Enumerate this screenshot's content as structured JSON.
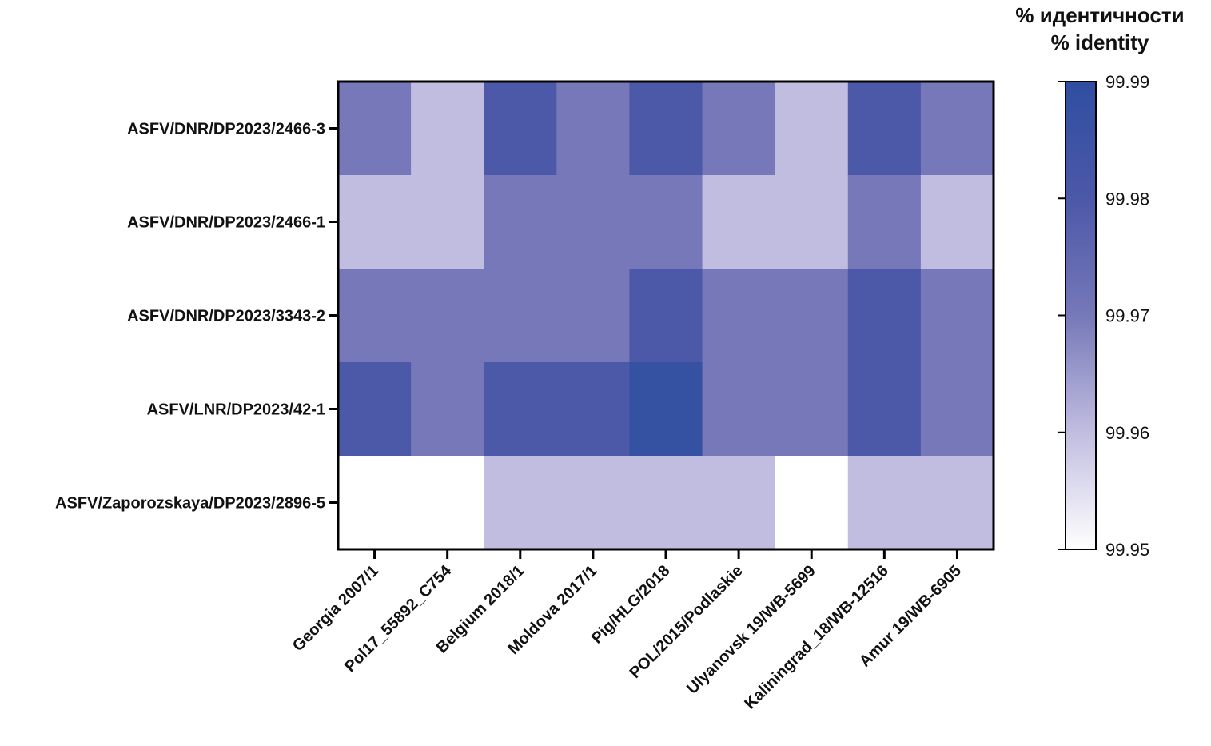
{
  "chart_data": {
    "type": "heatmap",
    "legend_title": [
      "% идентичности",
      "% identity"
    ],
    "rows": [
      "ASFV/DNR/DP2023/2466-3",
      "ASFV/DNR/DP2023/2466-1",
      "ASFV/DNR/DP2023/3343-2",
      "ASFV/LNR/DP2023/42-1",
      "ASFV/Zaporozskaya/DP2023/2896-5"
    ],
    "columns": [
      "Georgia 2007/1",
      "Pol17_55892_C754",
      "Belgium 2018/1",
      "Moldova 2017/1",
      "Pig/HLG/2018",
      "POL/2015/Podlaskie",
      "Ulyanovsk 19/WB-5699",
      "Kaliningrad_18/WB-12516",
      "Amur 19/WB-6905"
    ],
    "values": [
      [
        99.97,
        99.96,
        99.98,
        99.97,
        99.98,
        99.97,
        99.96,
        99.98,
        99.97
      ],
      [
        99.96,
        99.96,
        99.97,
        99.97,
        99.97,
        99.96,
        99.96,
        99.97,
        99.96
      ],
      [
        99.97,
        99.97,
        99.97,
        99.97,
        99.98,
        99.97,
        99.97,
        99.98,
        99.97
      ],
      [
        99.98,
        99.97,
        99.98,
        99.98,
        99.99,
        99.97,
        99.97,
        99.98,
        99.97
      ],
      [
        99.95,
        99.95,
        99.96,
        99.96,
        99.96,
        99.96,
        99.95,
        99.96,
        99.96
      ]
    ],
    "colorbar": {
      "min": 99.95,
      "max": 99.99,
      "ticks": [
        "99.99",
        "99.98",
        "99.97",
        "99.96",
        "99.95"
      ],
      "color_min": "#ffffff",
      "color_max": "#2f4ea1"
    },
    "cell_colors": {
      "99.95": "#ffffff",
      "99.96": "#c1bde0",
      "99.97": "#7678b9",
      "99.98": "#4c58a8",
      "99.99": "#3451a2"
    }
  }
}
